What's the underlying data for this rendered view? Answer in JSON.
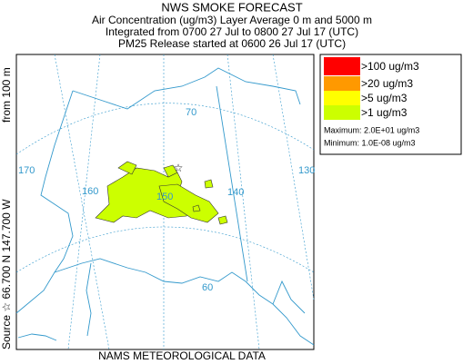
{
  "header": {
    "title": "NWS SMOKE FORECAST",
    "lines": [
      "Air Concentration (ug/m3) Layer Average    0 m and  5000 m",
      "Integrated from 0700 27 Jul to 0800 27 Jul 17 (UTC)",
      "PM25 Release started at 0600 26 Jul 17 (UTC)"
    ]
  },
  "side_label": {
    "source": "Source ☆ 66.700 N 147.700 W",
    "height": "from   100 m"
  },
  "footer": "NAMS METEOROLOGICAL DATA",
  "map": {
    "grid_labels": [
      "170",
      "160",
      "150",
      "140",
      "130",
      "70",
      "60"
    ]
  },
  "legend": {
    "items": [
      {
        "label": ">100 ug/m3",
        "color": "#ff0000"
      },
      {
        "label": ">20 ug/m3",
        "color": "#ff9900"
      },
      {
        "label": ">5 ug/m3",
        "color": "#ffff00"
      },
      {
        "label": ">1 ug/m3",
        "color": "#ccff00"
      }
    ],
    "maximum": "Maximum: 2.0E+01 ug/m3",
    "minimum": "Minimum: 1.0E-08 ug/m3"
  }
}
